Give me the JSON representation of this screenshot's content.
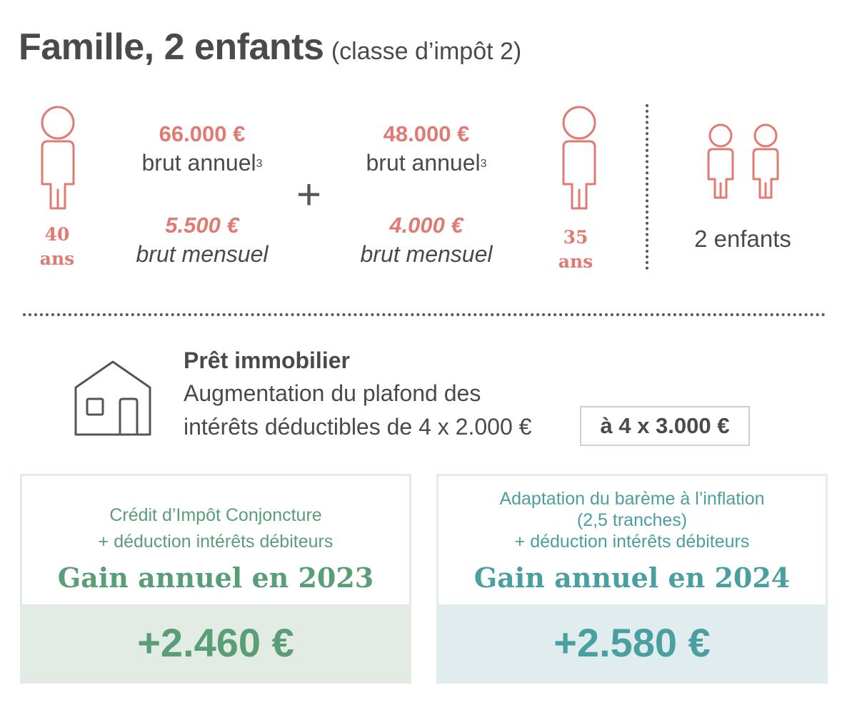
{
  "title": {
    "main": "Famille, 2 enfants",
    "sub": "(classe d’impôt 2)"
  },
  "person_left": {
    "age_num": "40",
    "age_unit": "ans",
    "annual_amount": "66.000 €",
    "annual_label": "brut annuel",
    "footnote": "3",
    "monthly_amount": "5.500 €",
    "monthly_label": "brut mensuel"
  },
  "plus_sign": "+",
  "person_right": {
    "age_num": "35",
    "age_unit": "ans",
    "annual_amount": "48.000 €",
    "annual_label": "brut annuel",
    "footnote": "3",
    "monthly_amount": "4.000 €",
    "monthly_label": "brut mensuel"
  },
  "children": {
    "label": "2 enfants",
    "count": 2
  },
  "loan": {
    "title": "Prêt immobilier",
    "line1": "Augmentation du plafond des",
    "line2": "intérêts déductibles de 4 x  2.000 €",
    "new_value": "à  4 x  3.000 €"
  },
  "cards": [
    {
      "desc_lines": [
        "Crédit d’Impôt Conjoncture",
        "+ déduction intérêts débiteurs"
      ],
      "gain_title": "Gain annuel en 2023",
      "value": "+2.460 €"
    },
    {
      "desc_lines": [
        "Adaptation du barème à l’inflation",
        "(2,5 tranches)",
        "+ déduction intérêts débiteurs"
      ],
      "gain_title": "Gain annuel en 2024",
      "value": "+2.580 €"
    }
  ],
  "colors": {
    "accent_red": "#e07a72",
    "text_dark": "#4a4a4a",
    "green": "#5a9e78",
    "green_bg": "#e2ece5",
    "teal": "#4a9fa0",
    "teal_bg": "#e0ecee"
  },
  "icons": [
    "adult-person-icon",
    "child-person-icon",
    "house-icon"
  ]
}
